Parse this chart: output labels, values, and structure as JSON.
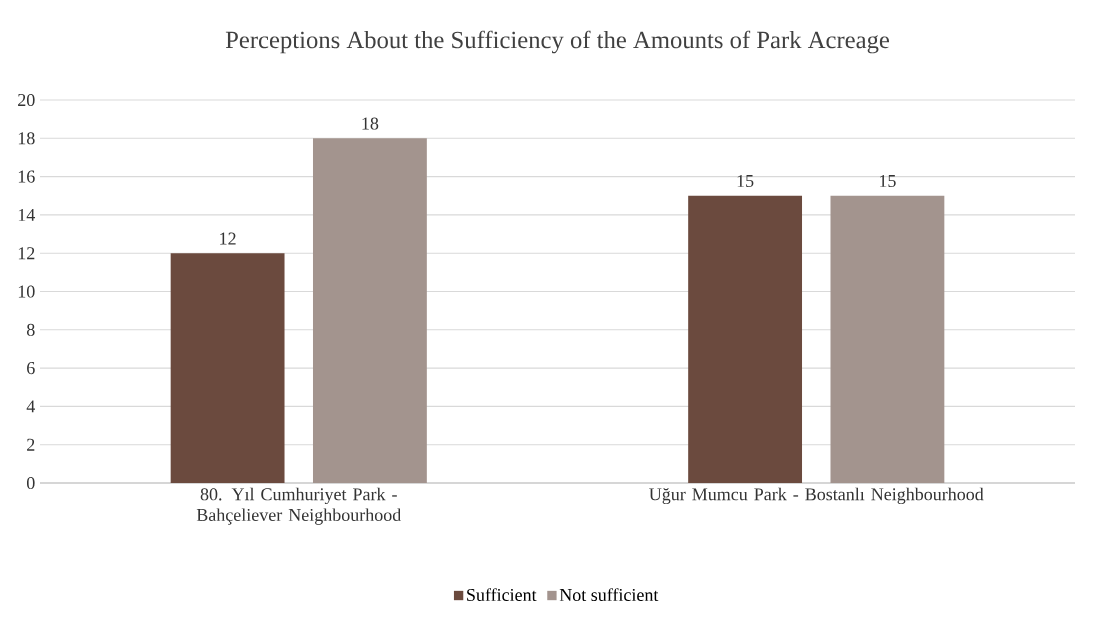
{
  "chart_data": {
    "type": "bar",
    "title": "Perceptions About the Sufficiency of the Amounts of Park Acreage",
    "categories": [
      "80. Yıl Cumhuriyet Park - Bahçeliever Neighbourhood",
      "Uğur Mumcu Park - Bostanlı Neighbourhood"
    ],
    "series": [
      {
        "name": "Sufficient",
        "color": "#6b4a3e",
        "values": [
          12,
          15
        ]
      },
      {
        "name": "Not sufficient",
        "color": "#a3948e",
        "values": [
          18,
          15
        ]
      }
    ],
    "ylim": [
      0,
      20
    ],
    "yticks": [
      0,
      2,
      4,
      6,
      8,
      10,
      12,
      14,
      16,
      18,
      20
    ],
    "grid": "y",
    "legend": "bottom",
    "data_labels": true
  }
}
